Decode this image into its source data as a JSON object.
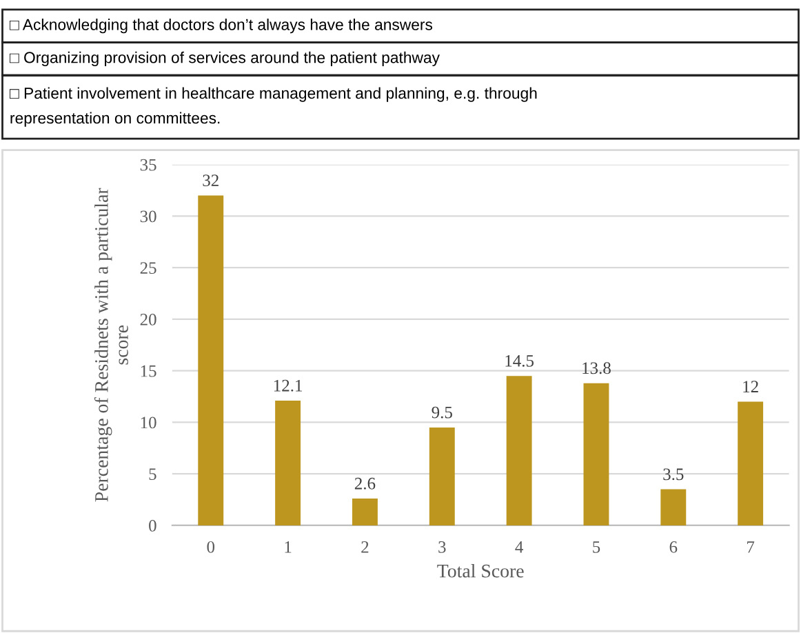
{
  "chart_data": {
    "type": "bar",
    "xlabel": "Total Score",
    "ylabel": "Percentage of Residnets with a particular\nscore",
    "annotations": [
      "□ Acknowledging that doctors don’t always have the answers",
      "□ Organizing provision of services around the patient pathway",
      "□ Patient involvement in healthcare management and planning, e.g. through\nrepresentation on committees."
    ],
    "categories": [
      "0",
      "1",
      "2",
      "3",
      "4",
      "5",
      "6",
      "7"
    ],
    "values": [
      32,
      12.1,
      2.6,
      9.5,
      14.5,
      13.8,
      3.5,
      12
    ],
    "color": "#bc961e",
    "ylim": [
      0,
      35
    ],
    "yticks": [
      0,
      5,
      10,
      15,
      20,
      25,
      30,
      35
    ],
    "grid": "y",
    "data_labels": true,
    "legend": false
  }
}
